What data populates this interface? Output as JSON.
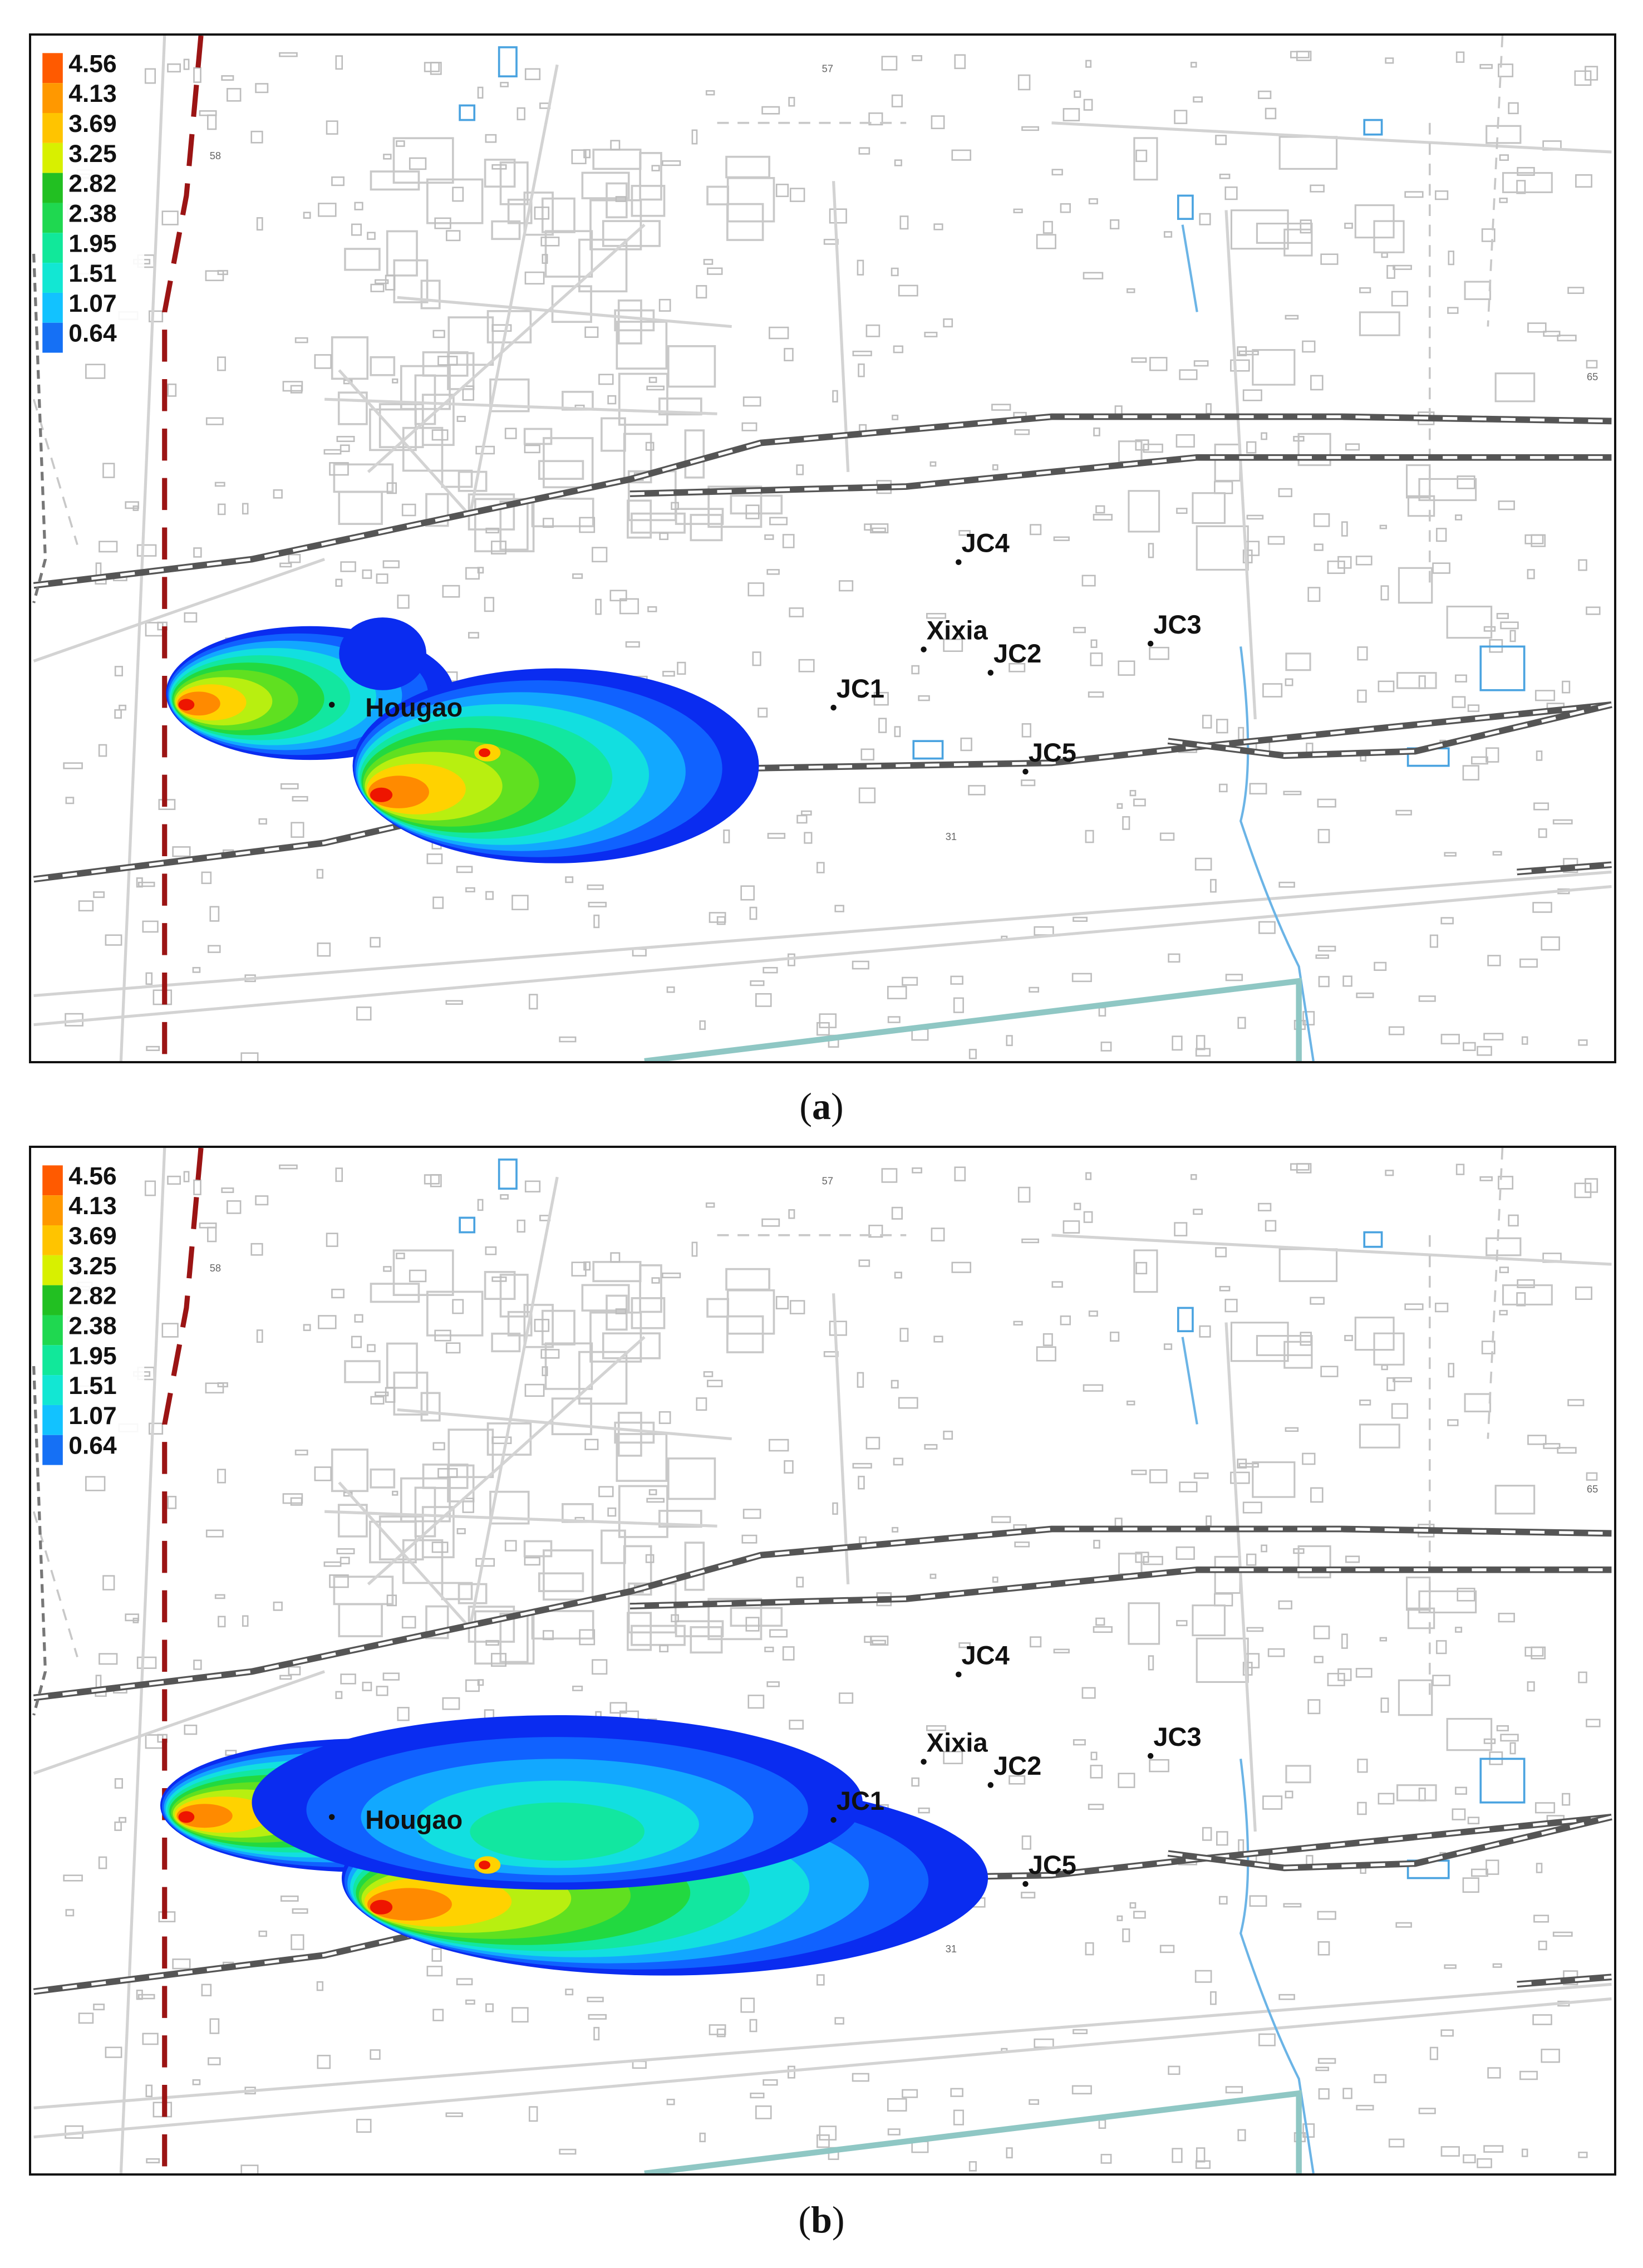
{
  "figure": {
    "panels": [
      {
        "id": "a",
        "caption_open": "(",
        "caption_letter": "a",
        "caption_close": ")",
        "legend": [
          "4.56",
          "4.13",
          "3.69",
          "3.25",
          "2.82",
          "2.38",
          "1.95",
          "1.51",
          "1.07",
          "0.64"
        ],
        "places": [
          "Hougao",
          "Xixia",
          "JC1",
          "JC2",
          "JC3",
          "JC4",
          "JC5"
        ],
        "plume_extent": "short"
      },
      {
        "id": "b",
        "caption_open": "(",
        "caption_letter": "b",
        "caption_close": ")",
        "legend": [
          "4.56",
          "4.13",
          "3.69",
          "3.25",
          "2.82",
          "2.38",
          "1.95",
          "1.51",
          "1.07",
          "0.64"
        ],
        "places": [
          "Hougao",
          "Xixia",
          "JC1",
          "JC2",
          "JC3",
          "JC4",
          "JC5"
        ],
        "plume_extent": "long"
      }
    ],
    "map_tick_labels": [
      "57",
      "58",
      "65",
      "31"
    ],
    "legend_colors": [
      "#ff5a00",
      "#ff9800",
      "#ffc400",
      "#d8f000",
      "#22c022",
      "#1fd850",
      "#11e89a",
      "#12e7d3",
      "#12c2ff",
      "#1570f5"
    ],
    "contour_colors": [
      "#0a2cf0",
      "#1062ff",
      "#12a8ff",
      "#12dfe0",
      "#12e7a0",
      "#22d940",
      "#60e020",
      "#b8ef10",
      "#ffd200",
      "#ff8a00",
      "#ee1500"
    ]
  }
}
